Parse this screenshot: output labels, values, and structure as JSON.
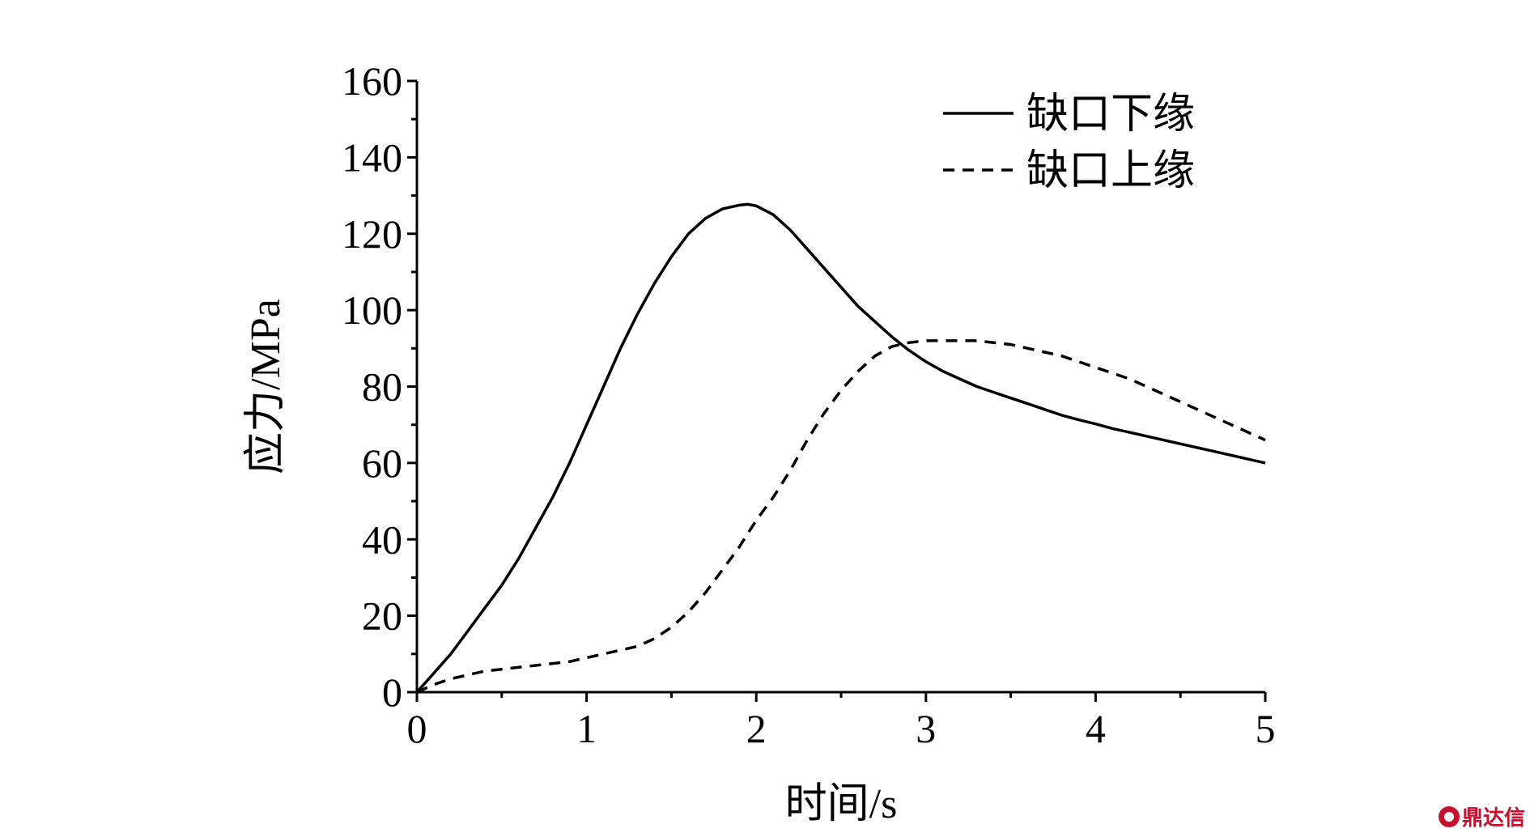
{
  "chart_data": {
    "type": "line",
    "title": "",
    "xlabel": "时间/s",
    "ylabel": "应力/MPa",
    "xlim": [
      0,
      5
    ],
    "ylim": [
      0,
      160
    ],
    "xticks": [
      0,
      1,
      2,
      3,
      4,
      5
    ],
    "yticks": [
      0,
      20,
      40,
      60,
      80,
      100,
      120,
      140,
      160
    ],
    "grid": false,
    "legend_position": "top-right",
    "series": [
      {
        "name": "缺口下缘",
        "style": "solid",
        "color": "#000000",
        "x": [
          0,
          0.1,
          0.2,
          0.3,
          0.4,
          0.5,
          0.6,
          0.7,
          0.8,
          0.9,
          1.0,
          1.1,
          1.2,
          1.3,
          1.4,
          1.5,
          1.6,
          1.7,
          1.8,
          1.9,
          1.95,
          2.0,
          2.1,
          2.2,
          2.3,
          2.4,
          2.5,
          2.6,
          2.7,
          2.8,
          2.9,
          3.0,
          3.1,
          3.2,
          3.3,
          3.4,
          3.5,
          3.6,
          3.7,
          3.8,
          3.9,
          4.0,
          4.1,
          4.2,
          4.3,
          4.4,
          4.5,
          4.6,
          4.7,
          4.8,
          4.9,
          5.0
        ],
        "y": [
          0,
          5,
          10,
          16,
          22,
          28,
          35,
          43,
          51,
          60,
          70,
          80,
          90,
          99,
          107,
          114,
          120,
          124,
          126.5,
          127.5,
          127.7,
          127.3,
          125,
          121,
          116,
          111,
          106,
          101,
          97,
          93,
          89.5,
          86.5,
          84,
          82,
          80,
          78.5,
          77,
          75.5,
          74,
          72.5,
          71.3,
          70.2,
          69,
          68,
          67,
          66,
          65,
          64,
          63,
          62,
          61,
          60
        ]
      },
      {
        "name": "缺口上缘",
        "style": "dashed",
        "color": "#000000",
        "x": [
          0,
          0.1,
          0.2,
          0.3,
          0.4,
          0.5,
          0.6,
          0.7,
          0.8,
          0.9,
          1.0,
          1.1,
          1.2,
          1.3,
          1.4,
          1.5,
          1.6,
          1.7,
          1.8,
          1.9,
          2.0,
          2.1,
          2.2,
          2.3,
          2.4,
          2.5,
          2.6,
          2.7,
          2.8,
          2.9,
          3.0,
          3.1,
          3.2,
          3.3,
          3.4,
          3.5,
          3.6,
          3.7,
          3.8,
          3.9,
          4.0,
          4.1,
          4.2,
          4.3,
          4.4,
          4.5,
          4.6,
          4.7,
          4.8,
          4.9,
          5.0
        ],
        "y": [
          0,
          2,
          3.5,
          4.5,
          5.5,
          6,
          6.5,
          7,
          7.5,
          8,
          9,
          10,
          11,
          12,
          14,
          17,
          21,
          26,
          32,
          38,
          45,
          51,
          58,
          66,
          73,
          79,
          84,
          88,
          90.5,
          91.5,
          92,
          92,
          92,
          92,
          91.5,
          91,
          90,
          89,
          88,
          86.5,
          85,
          83.5,
          82,
          80,
          78,
          76,
          74,
          72,
          70,
          68,
          66
        ]
      }
    ]
  },
  "watermark": {
    "text": "鼎达信",
    "color": "#c8102e"
  }
}
